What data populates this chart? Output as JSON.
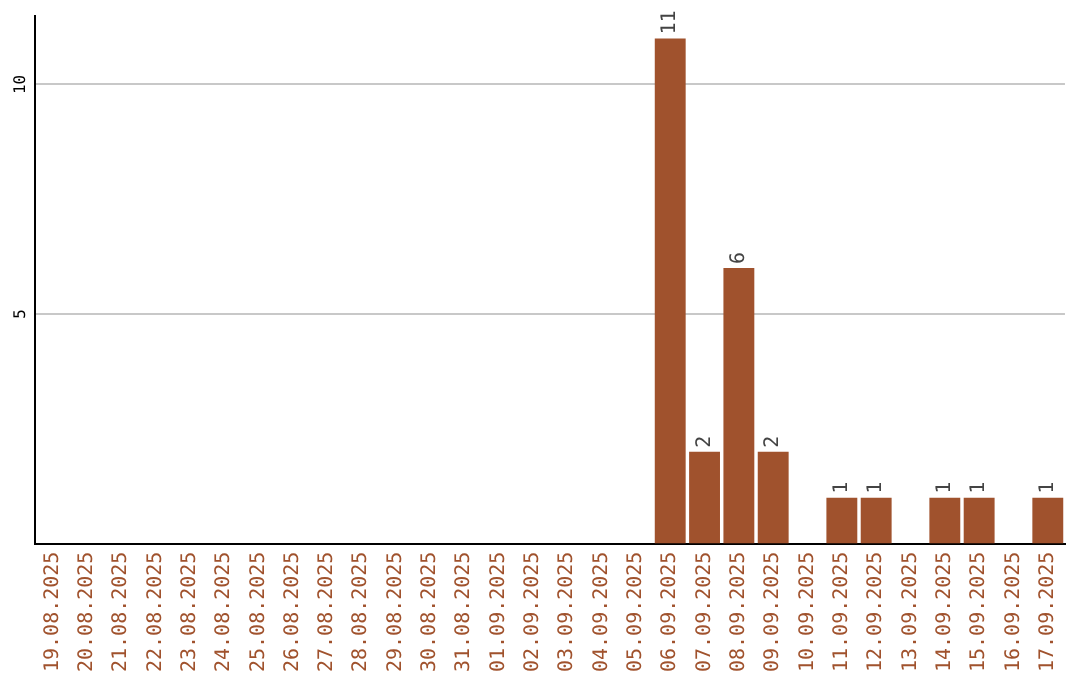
{
  "chart_data": {
    "type": "bar",
    "categories": [
      "19.08.2025",
      "20.08.2025",
      "21.08.2025",
      "22.08.2025",
      "23.08.2025",
      "24.08.2025",
      "25.08.2025",
      "26.08.2025",
      "27.08.2025",
      "28.08.2025",
      "29.08.2025",
      "30.08.2025",
      "31.08.2025",
      "01.09.2025",
      "02.09.2025",
      "03.09.2025",
      "04.09.2025",
      "05.09.2025",
      "06.09.2025",
      "07.09.2025",
      "08.09.2025",
      "09.09.2025",
      "10.09.2025",
      "11.09.2025",
      "12.09.2025",
      "13.09.2025",
      "14.09.2025",
      "15.09.2025",
      "16.09.2025",
      "17.09.2025"
    ],
    "values": [
      0,
      0,
      0,
      0,
      0,
      0,
      0,
      0,
      0,
      0,
      0,
      0,
      0,
      0,
      0,
      0,
      0,
      0,
      11,
      2,
      6,
      2,
      0,
      1,
      1,
      0,
      1,
      1,
      0,
      1
    ],
    "value_labels": [
      null,
      null,
      null,
      null,
      null,
      null,
      null,
      null,
      null,
      null,
      null,
      null,
      null,
      null,
      null,
      null,
      null,
      null,
      "11",
      "2",
      "6",
      "2",
      null,
      "1",
      "1",
      null,
      "1",
      "1",
      null,
      "1"
    ],
    "color": "#a0522d",
    "ylim": [
      0,
      11.5
    ],
    "yticks": [
      5,
      10
    ],
    "grid": "y"
  }
}
